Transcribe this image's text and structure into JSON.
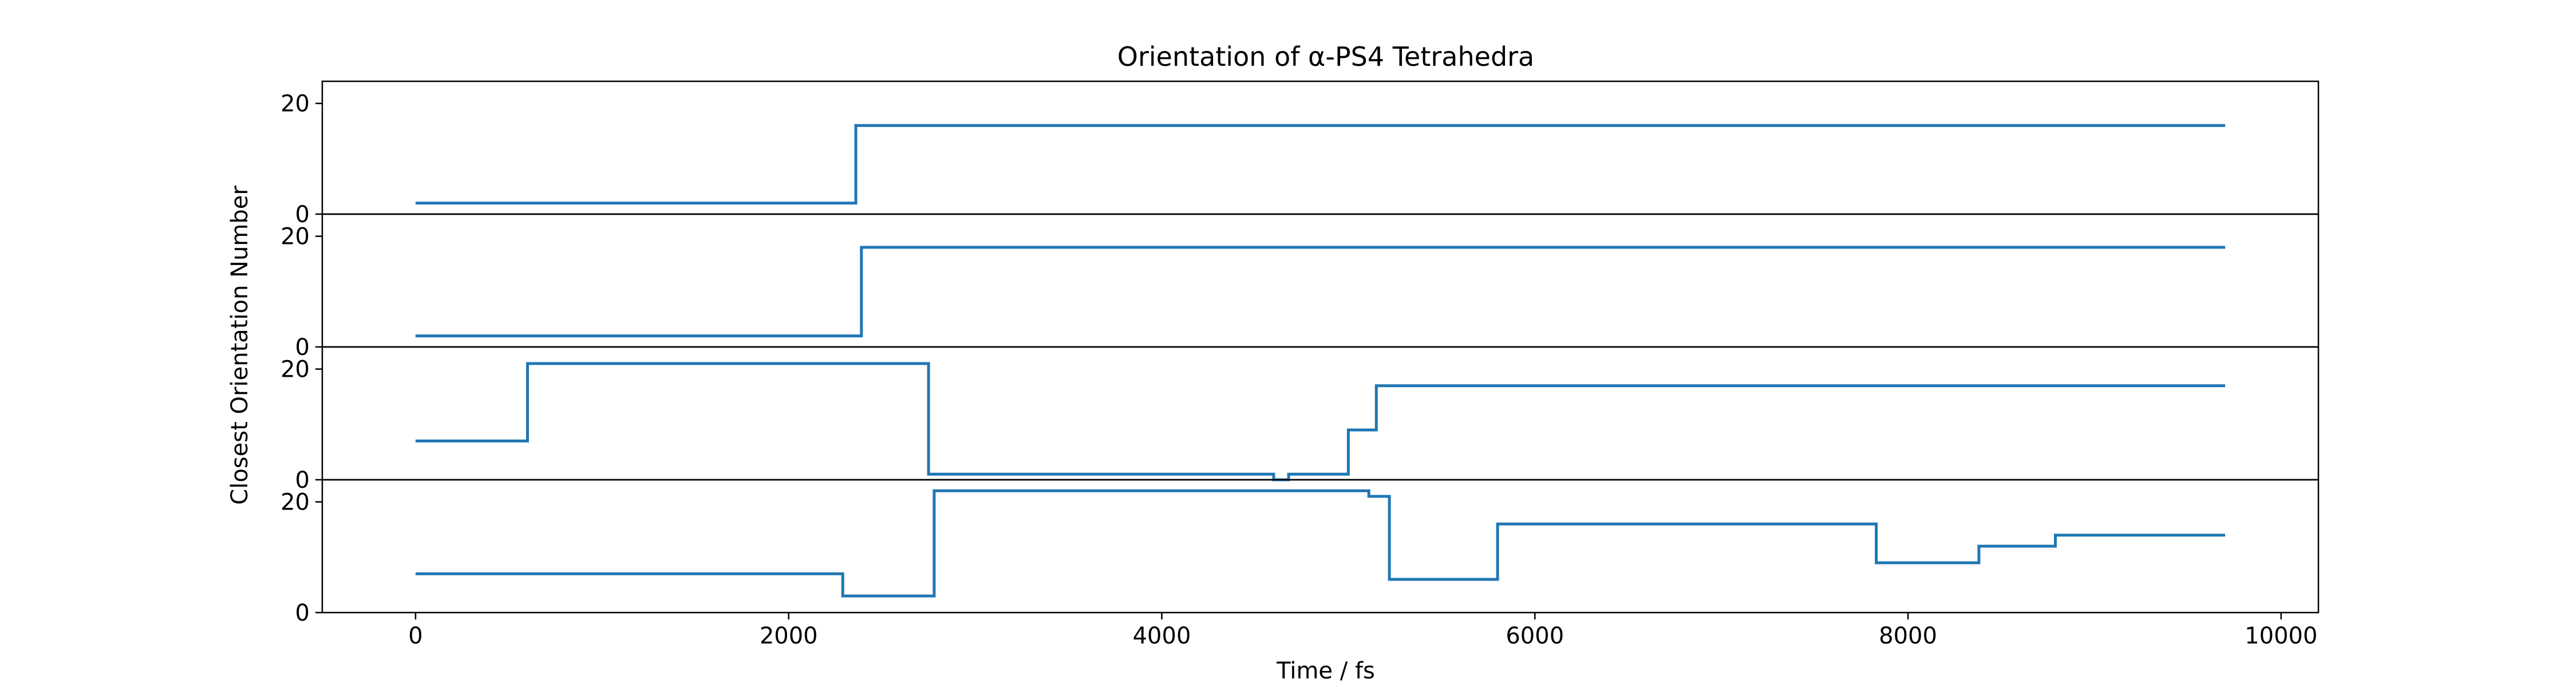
{
  "colors": {
    "series": "#1f77b4",
    "axes": "#000000",
    "background": "#ffffff"
  },
  "chart_data": {
    "type": "line",
    "title": "Orientation of α-PS4 Tetrahedra",
    "xlabel": "Time / fs",
    "ylabel": "Closest Orientation Number",
    "xlim": [
      -500,
      10200
    ],
    "ylim": [
      0,
      24
    ],
    "xticks": [
      0,
      2000,
      4000,
      6000,
      8000,
      10000
    ],
    "yticks": [
      0,
      20
    ],
    "grid": false,
    "legend": "none",
    "shared_x": true,
    "step": "post",
    "panels": [
      {
        "series": [
          {
            "x": [
              0,
              2360,
              9700
            ],
            "y": [
              2,
              16,
              16
            ]
          }
        ]
      },
      {
        "series": [
          {
            "x": [
              0,
              2390,
              9700
            ],
            "y": [
              2,
              18,
              18
            ]
          }
        ]
      },
      {
        "series": [
          {
            "x": [
              0,
              600,
              2750,
              4600,
              4680,
              5000,
              5150,
              9700
            ],
            "y": [
              7,
              21,
              1,
              0,
              1,
              9,
              17,
              17
            ]
          }
        ]
      },
      {
        "series": [
          {
            "x": [
              0,
              2290,
              2780,
              5110,
              5220,
              5800,
              7830,
              8380,
              8790,
              9700
            ],
            "y": [
              7,
              3,
              22,
              21,
              6,
              16,
              9,
              12,
              14,
              14
            ]
          }
        ]
      }
    ]
  }
}
